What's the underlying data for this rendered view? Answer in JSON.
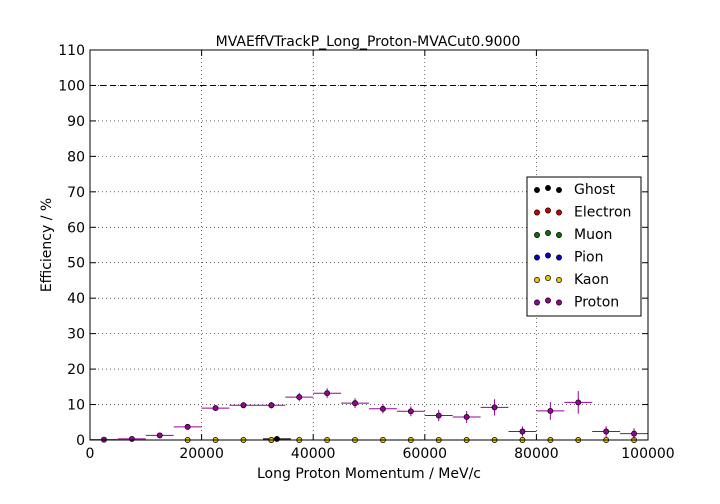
{
  "chart_data": {
    "type": "scatter",
    "title": "MVAEffVTrackP_Long_Proton-MVACut0.9000",
    "xlabel": "Long Proton Momentum / MeV/c",
    "ylabel": "Efficiency / %",
    "xlim": [
      0,
      100000
    ],
    "ylim": [
      0,
      110
    ],
    "xticks": [
      0,
      20000,
      40000,
      60000,
      80000,
      100000
    ],
    "xtick_labels": [
      "0",
      "20000",
      "40000",
      "60000",
      "80000",
      "100000"
    ],
    "yticks": [
      0,
      10,
      20,
      30,
      40,
      50,
      60,
      70,
      80,
      90,
      100,
      110
    ],
    "ytick_labels": [
      "0",
      "10",
      "20",
      "30",
      "40",
      "50",
      "60",
      "70",
      "80",
      "90",
      "100",
      "110"
    ],
    "grid": true,
    "reference_line": 100,
    "legend_position": "center-right",
    "bin_half_width": 2500,
    "series": [
      {
        "name": "Ghost",
        "color": "#000000",
        "x": [
          32500,
          33500
        ],
        "y": [
          0,
          0.3
        ],
        "yerr": [
          0,
          0.3
        ]
      },
      {
        "name": "Electron",
        "color": "#cc0000",
        "x": [],
        "y": [],
        "yerr": []
      },
      {
        "name": "Muon",
        "color": "#007700",
        "x": [],
        "y": [],
        "yerr": []
      },
      {
        "name": "Pion",
        "color": "#0000cc",
        "x": [],
        "y": [],
        "yerr": []
      },
      {
        "name": "Kaon",
        "color": "#e8c800",
        "x": [
          17500,
          22500,
          27500,
          32500,
          37500,
          42500,
          47500,
          52500,
          57500,
          62500,
          67500,
          72500,
          77500,
          82500,
          87500,
          92500,
          97500
        ],
        "y": [
          0,
          0,
          0,
          0,
          0,
          0,
          0,
          0,
          0,
          0,
          0,
          0,
          0,
          0,
          0,
          0,
          0
        ],
        "yerr": [
          0,
          0,
          0,
          0,
          0,
          0,
          0,
          0,
          0,
          0,
          0,
          0,
          0,
          0,
          0,
          0,
          0
        ]
      },
      {
        "name": "Proton",
        "color": "#990099",
        "x": [
          2500,
          7500,
          12500,
          17500,
          22500,
          27500,
          32500,
          37500,
          42500,
          47500,
          52500,
          57500,
          62500,
          67500,
          72500,
          77500,
          82500,
          87500,
          92500,
          97500
        ],
        "y": [
          0.1,
          0.3,
          1.3,
          3.7,
          9.0,
          9.8,
          9.8,
          12.1,
          13.2,
          10.4,
          8.8,
          8.1,
          6.9,
          6.5,
          9.2,
          2.4,
          8.2,
          10.6,
          2.4,
          1.8
        ],
        "yerr": [
          0.1,
          0.2,
          0.4,
          0.6,
          0.8,
          0.8,
          0.9,
          1.2,
          1.4,
          1.4,
          1.3,
          1.4,
          1.6,
          1.7,
          2.3,
          1.4,
          2.5,
          3.2,
          1.5,
          1.5
        ]
      }
    ]
  }
}
